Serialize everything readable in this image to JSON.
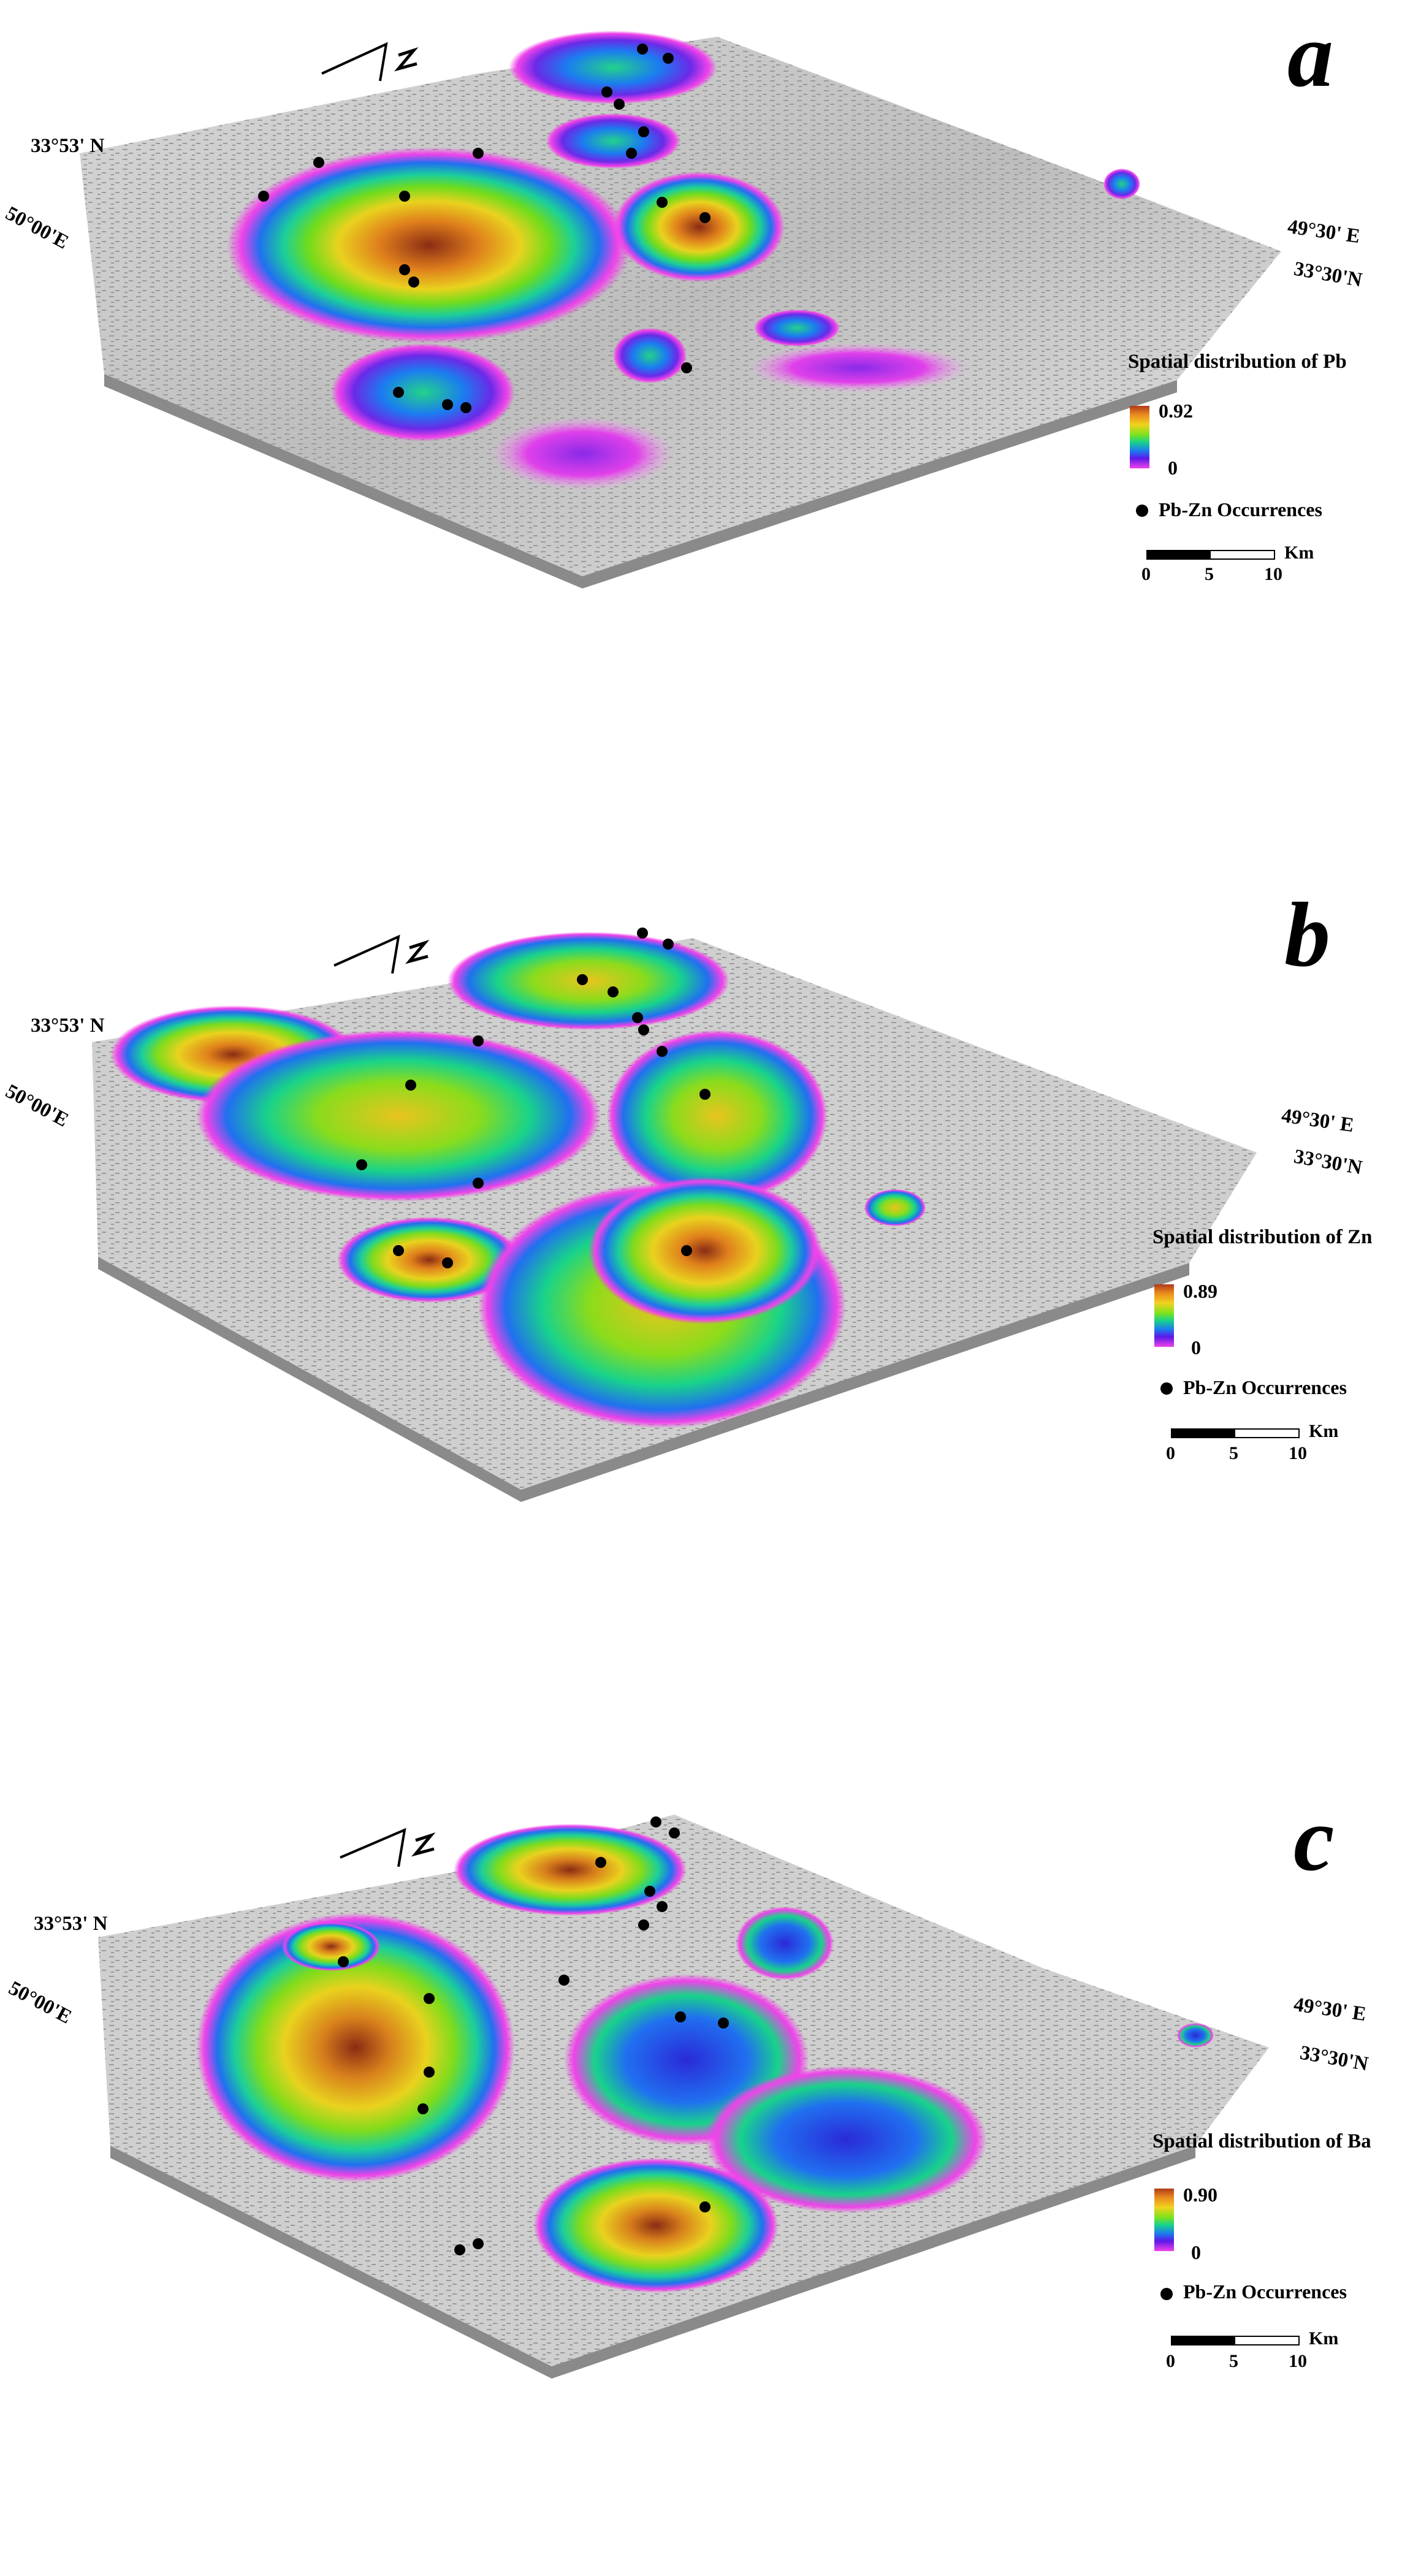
{
  "panels": [
    {
      "letter": "a",
      "coords": {
        "nw": "33°53' N",
        "west": "50°00'E",
        "east": "49°30' E",
        "se": "33°30'N"
      },
      "legend_title": "Spatial distribution of Pb",
      "max": "0.92",
      "min": "0",
      "occurrence_label": "Pb-Zn Occurrences",
      "scale_unit": "Km",
      "scale_ticks": [
        "0",
        "5",
        "10"
      ]
    },
    {
      "letter": "b",
      "coords": {
        "nw": "33°53' N",
        "west": "50°00'E",
        "east": "49°30' E",
        "se": "33°30'N"
      },
      "legend_title": "Spatial distribution of Zn",
      "max": "0.89",
      "min": "0",
      "occurrence_label": "Pb-Zn Occurrences",
      "scale_unit": "Km",
      "scale_ticks": [
        "0",
        "5",
        "10"
      ]
    },
    {
      "letter": "c",
      "coords": {
        "nw": "33°53' N",
        "west": "50°00'E",
        "east": "49°30' E",
        "se": "33°30'N"
      },
      "legend_title": "Spatial distribution of Ba",
      "max": "0.90",
      "min": "0",
      "occurrence_label": "Pb-Zn Occurrences",
      "scale_unit": "Km",
      "scale_ticks": [
        "0",
        "5",
        "10"
      ]
    }
  ],
  "colors": {
    "terrain": "#c9c9c9",
    "ramp": [
      "#b13a1a",
      "#e88a1e",
      "#f2d21e",
      "#7ee21c",
      "#18d38a",
      "#1b7cf0",
      "#5b18e8",
      "#f042ea"
    ]
  }
}
